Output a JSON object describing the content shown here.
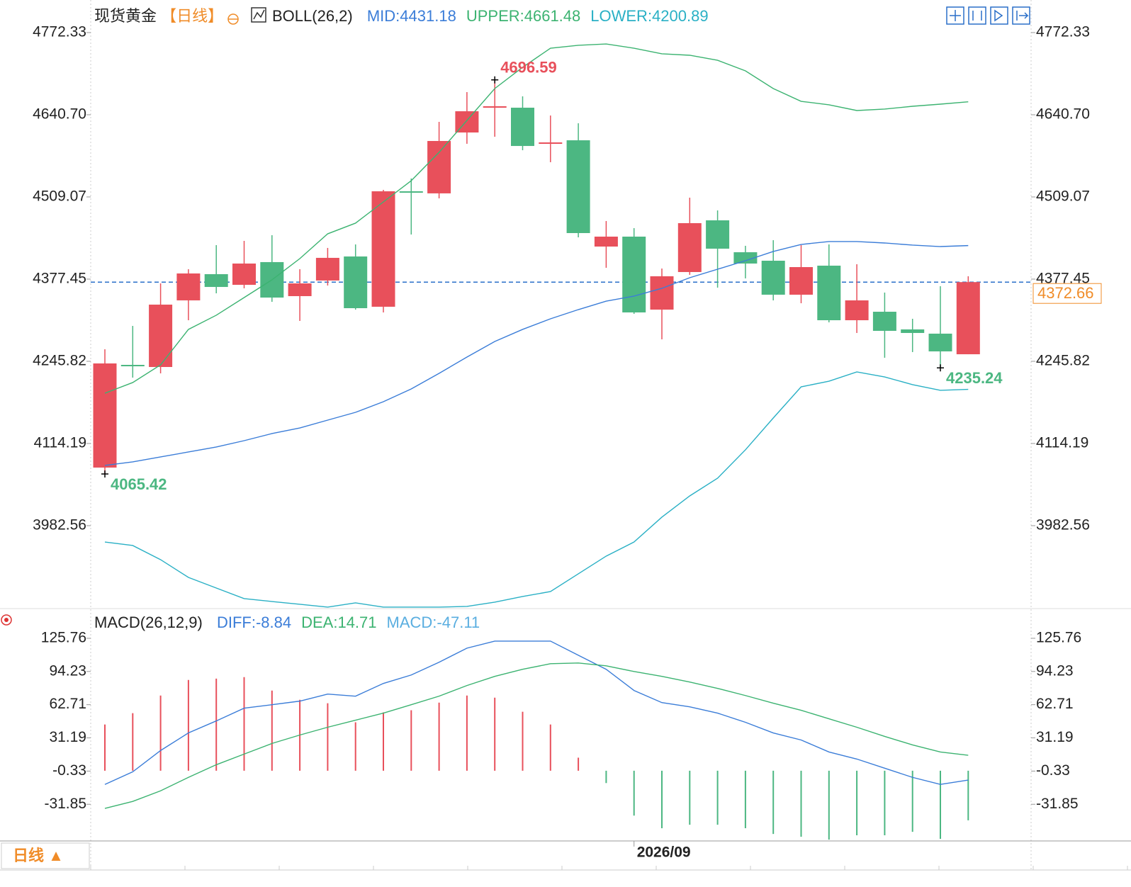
{
  "chart_data": {
    "type": "candlestick",
    "title": "现货黄金",
    "period": "【日线】",
    "indicator": "BOLL(26,2)",
    "categories": [
      null,
      null,
      null,
      null,
      null,
      null,
      null,
      null,
      null,
      null,
      null,
      null,
      null,
      null,
      null,
      null,
      null,
      null,
      null,
      "2026/09",
      null,
      null,
      null,
      null,
      null,
      null,
      null,
      null,
      null,
      null,
      null,
      null
    ],
    "open": [
      4075.6,
      4240.1,
      4236.7,
      4343.4,
      4385.4,
      4368.3,
      4404.7,
      4350.2,
      4375.2,
      4413.7,
      4333.2,
      4518.1,
      4514.8,
      4612.3,
      4652.0,
      4652.0,
      4594.2,
      4599.8,
      4429.6,
      4445.5,
      4328.6,
      4388.8,
      4471.6,
      4420.5,
      4406.9,
      4352.5,
      4399.0,
      4311.6,
      4325.2,
      4296.9,
      4290.1,
      4257.1
    ],
    "high": [
      4265.1,
      4302.5,
      4370.6,
      4393.3,
      4431.9,
      4438.7,
      4447.8,
      4393.3,
      4427.4,
      4433.0,
      4520.4,
      4538.6,
      4629.3,
      4677.0,
      4696.59,
      4670.2,
      4639.5,
      4627.1,
      4470.5,
      4459.1,
      4394.4,
      4507.9,
      4487.5,
      4430.8,
      4439.8,
      4431.9,
      4433.0,
      4401.3,
      4355.9,
      4313.9,
      4366.1,
      4382.0
    ],
    "low": [
      4065.42,
      4219.7,
      4226.5,
      4311.6,
      4354.7,
      4362.7,
      4341.1,
      4310.5,
      4367.2,
      4328.6,
      4324.1,
      4448.9,
      4506.8,
      4594.2,
      4605.5,
      4583.9,
      4564.7,
      4444.4,
      4395.6,
      4321.8,
      4281.0,
      4384.3,
      4363.8,
      4378.6,
      4343.4,
      4338.8,
      4308.2,
      4291.2,
      4251.5,
      4260.6,
      4235.24,
      4257.1
    ],
    "close": [
      4242.4,
      4237.9,
      4336.6,
      4386.5,
      4364.9,
      4402.4,
      4347.9,
      4370.6,
      4411.5,
      4330.9,
      4518.1,
      4515.9,
      4598.7,
      4646.3,
      4654.3,
      4590.7,
      4596.4,
      4451.2,
      4445.5,
      4324.1,
      4382.0,
      4467.1,
      4426.2,
      4402.4,
      4352.5,
      4396.7,
      4311.6,
      4343.4,
      4294.6,
      4291.2,
      4261.7,
      4372.66
    ],
    "up_color": "#e8505b",
    "down_color": "#4cb782",
    "last_price": 4372.66,
    "last_price_color": "#f08c28",
    "extreme_labels": [
      {
        "value": 4696.59,
        "color": "#e8505b"
      },
      {
        "value": 4065.42,
        "color": "#4cb782"
      },
      {
        "value": 4235.24,
        "color": "#4cb782"
      }
    ],
    "series": [
      {
        "name": "MID:4431.18",
        "color": "#3b7dd8",
        "values": [
          4079.0,
          4084.7,
          4092.6,
          4100.6,
          4108.5,
          4118.7,
          4130.1,
          4139.1,
          4151.6,
          4164.1,
          4181.1,
          4201.5,
          4226.5,
          4252.6,
          4277.6,
          4296.9,
          4313.9,
          4328.6,
          4342.2,
          4350.2,
          4362.7,
          4379.7,
          4393.3,
          4406.9,
          4421.7,
          4433.0,
          4437.6,
          4437.6,
          4435.3,
          4431.9,
          4429.6,
          4431.18
        ]
      },
      {
        "name": "UPPER:4661.48",
        "color": "#3cb371",
        "values": [
          4194.7,
          4211.8,
          4240.1,
          4296.9,
          4319.6,
          4347.9,
          4376.3,
          4410.3,
          4450.0,
          4467.1,
          4501.1,
          4535.1,
          4580.5,
          4631.6,
          4682.7,
          4716.7,
          4747.3,
          4751.9,
          4754.1,
          4747.3,
          4738.3,
          4736.0,
          4728.0,
          4711.0,
          4682.7,
          4662.2,
          4656.6,
          4647.5,
          4649.8,
          4654.3,
          4657.7,
          4661.48
        ]
      },
      {
        "name": "LOWER:4200.89",
        "color": "#2ab0c5",
        "values": [
          3956.4,
          3950.8,
          3928.1,
          3899.7,
          3882.7,
          3865.7,
          3861.1,
          3856.6,
          3852.1,
          3858.9,
          3852.1,
          3852.1,
          3852.1,
          3853.2,
          3860.0,
          3869.1,
          3877.0,
          3905.4,
          3933.8,
          3956.4,
          3996.2,
          4030.2,
          4058.6,
          4104.0,
          4155.0,
          4204.9,
          4214.0,
          4228.8,
          4220.8,
          4208.4,
          4199.3,
          4200.89
        ]
      }
    ],
    "ylim": [
      3850.9,
      4824.5
    ],
    "yticks": [
      4772.33,
      {
        "value": 4640.7,
        "label": "4640.70"
      },
      4509.07,
      4377.45,
      4245.82,
      4114.19,
      3982.56
    ],
    "macd": {
      "title": "MACD(26,12,9)",
      "ylim": [
        -66,
        153.3
      ],
      "yticks": [
        125.76,
        94.23,
        62.71,
        31.19,
        -0.33,
        -31.85
      ],
      "histogram": {
        "name": "MACD:-47.11",
        "color": "#5aaee0",
        "pos_color": "#e8505b",
        "neg_color": "#4cb782",
        "values": [
          43.9,
          54.7,
          71.4,
          86.2,
          87.5,
          88.9,
          76.1,
          67.4,
          64.1,
          46.0,
          55.4,
          57.4,
          64.7,
          71.4,
          69.4,
          56.0,
          43.9,
          12.4,
          -11.7,
          -42.6,
          -54.6,
          -51.3,
          -51.3,
          -54.6,
          -60.0,
          -62.7,
          -65.4,
          -61.3,
          -61.3,
          -58.0,
          -64.7,
          -47.11
        ]
      },
      "series": [
        {
          "name": "DIFF:-8.84",
          "color": "#3b7dd8",
          "values": [
            -13.0,
            -1.0,
            19.2,
            35.9,
            47.3,
            59.4,
            62.7,
            66.1,
            72.8,
            70.8,
            82.9,
            90.9,
            103.0,
            116.4,
            123.1,
            123.1,
            123.1,
            109.7,
            96.3,
            76.2,
            64.7,
            60.7,
            54.7,
            46.0,
            35.9,
            29.2,
            17.8,
            11.1,
            2.4,
            -6.3,
            -13.0,
            -8.84
          ]
        },
        {
          "name": "DEA:14.71",
          "color": "#3cb371",
          "values": [
            -35.8,
            -29.1,
            -19.1,
            -6.3,
            5.7,
            15.8,
            25.9,
            33.9,
            41.3,
            48.0,
            54.7,
            62.7,
            70.8,
            80.9,
            89.6,
            96.3,
            101.6,
            102.3,
            99.6,
            94.2,
            89.6,
            84.2,
            78.2,
            71.4,
            64.1,
            57.4,
            49.3,
            41.3,
            32.6,
            24.5,
            17.8,
            14.71
          ]
        }
      ]
    },
    "period_button": "日线 ▲"
  }
}
